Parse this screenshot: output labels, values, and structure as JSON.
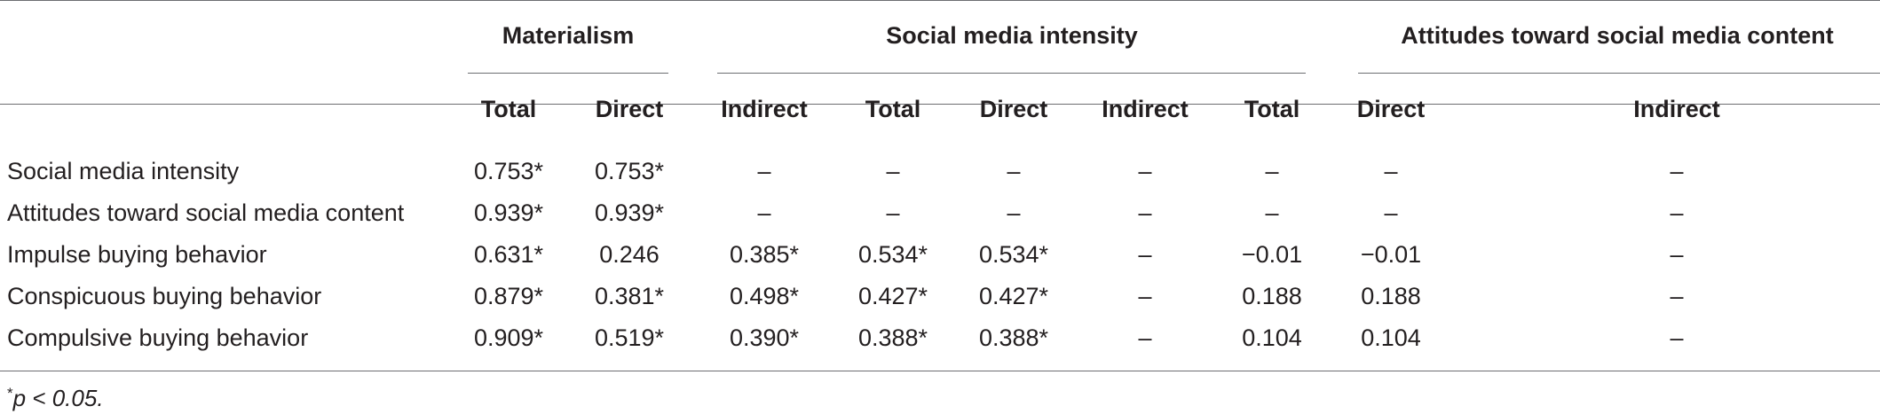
{
  "groups": [
    "Materialism",
    "Social media intensity",
    "Attitudes toward social media content"
  ],
  "columns": [
    "Total",
    "Direct",
    "Indirect",
    "Total",
    "Direct",
    "Indirect",
    "Total",
    "Direct",
    "Indirect"
  ],
  "rows": [
    {
      "label": "Social media intensity",
      "cells": [
        "0.753*",
        "0.753*",
        "–",
        "–",
        "–",
        "–",
        "–",
        "–",
        "–"
      ]
    },
    {
      "label": "Attitudes toward social media content",
      "cells": [
        "0.939*",
        "0.939*",
        "–",
        "–",
        "–",
        "–",
        "–",
        "–",
        "–"
      ]
    },
    {
      "label": "Impulse buying behavior",
      "cells": [
        "0.631*",
        "0.246",
        "0.385*",
        "0.534*",
        "0.534*",
        "–",
        "−0.01",
        "−0.01",
        "–"
      ]
    },
    {
      "label": "Conspicuous buying behavior",
      "cells": [
        "0.879*",
        "0.381*",
        "0.498*",
        "0.427*",
        "0.427*",
        "–",
        "0.188",
        "0.188",
        "–"
      ]
    },
    {
      "label": "Compulsive buying behavior",
      "cells": [
        "0.909*",
        "0.519*",
        "0.390*",
        "0.388*",
        "0.388*",
        "–",
        "0.104",
        "0.104",
        "–"
      ]
    }
  ],
  "footnote": {
    "marker": "*",
    "text": "p < 0.05."
  }
}
